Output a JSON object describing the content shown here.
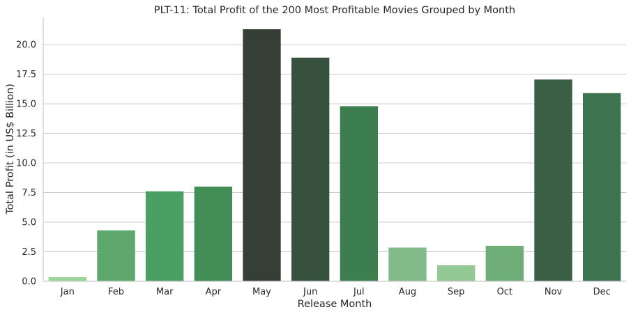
{
  "chart_data": {
    "type": "bar",
    "title": "PLT-11: Total Profit of the 200 Most Profitable Movies Grouped by Month",
    "xlabel": "Release Month",
    "ylabel": "Total Profit (in US$ Billion)",
    "categories": [
      "Jan",
      "Feb",
      "Mar",
      "Apr",
      "May",
      "Jun",
      "Jul",
      "Aug",
      "Sep",
      "Oct",
      "Nov",
      "Dec"
    ],
    "values": [
      0.35,
      4.3,
      7.6,
      8.0,
      21.3,
      18.9,
      14.8,
      2.85,
      1.35,
      3.0,
      17.05,
      15.9
    ],
    "ylim": [
      0,
      22.3
    ],
    "yticks": [
      0.0,
      2.5,
      5.0,
      7.5,
      10.0,
      12.5,
      15.0,
      17.5,
      20.0
    ],
    "ytick_labels": [
      "0.0",
      "2.5",
      "5.0",
      "7.5",
      "10.0",
      "12.5",
      "15.0",
      "17.5",
      "20.0"
    ],
    "grid": "horizontal",
    "legend": "none",
    "colors": [
      "#9dd69a",
      "#5ea86b",
      "#4a9f63",
      "#438e57",
      "#353f36",
      "#38513e",
      "#3c7e50",
      "#82bb89",
      "#94c995",
      "#6fae79",
      "#3a5f44",
      "#3e7350"
    ]
  }
}
